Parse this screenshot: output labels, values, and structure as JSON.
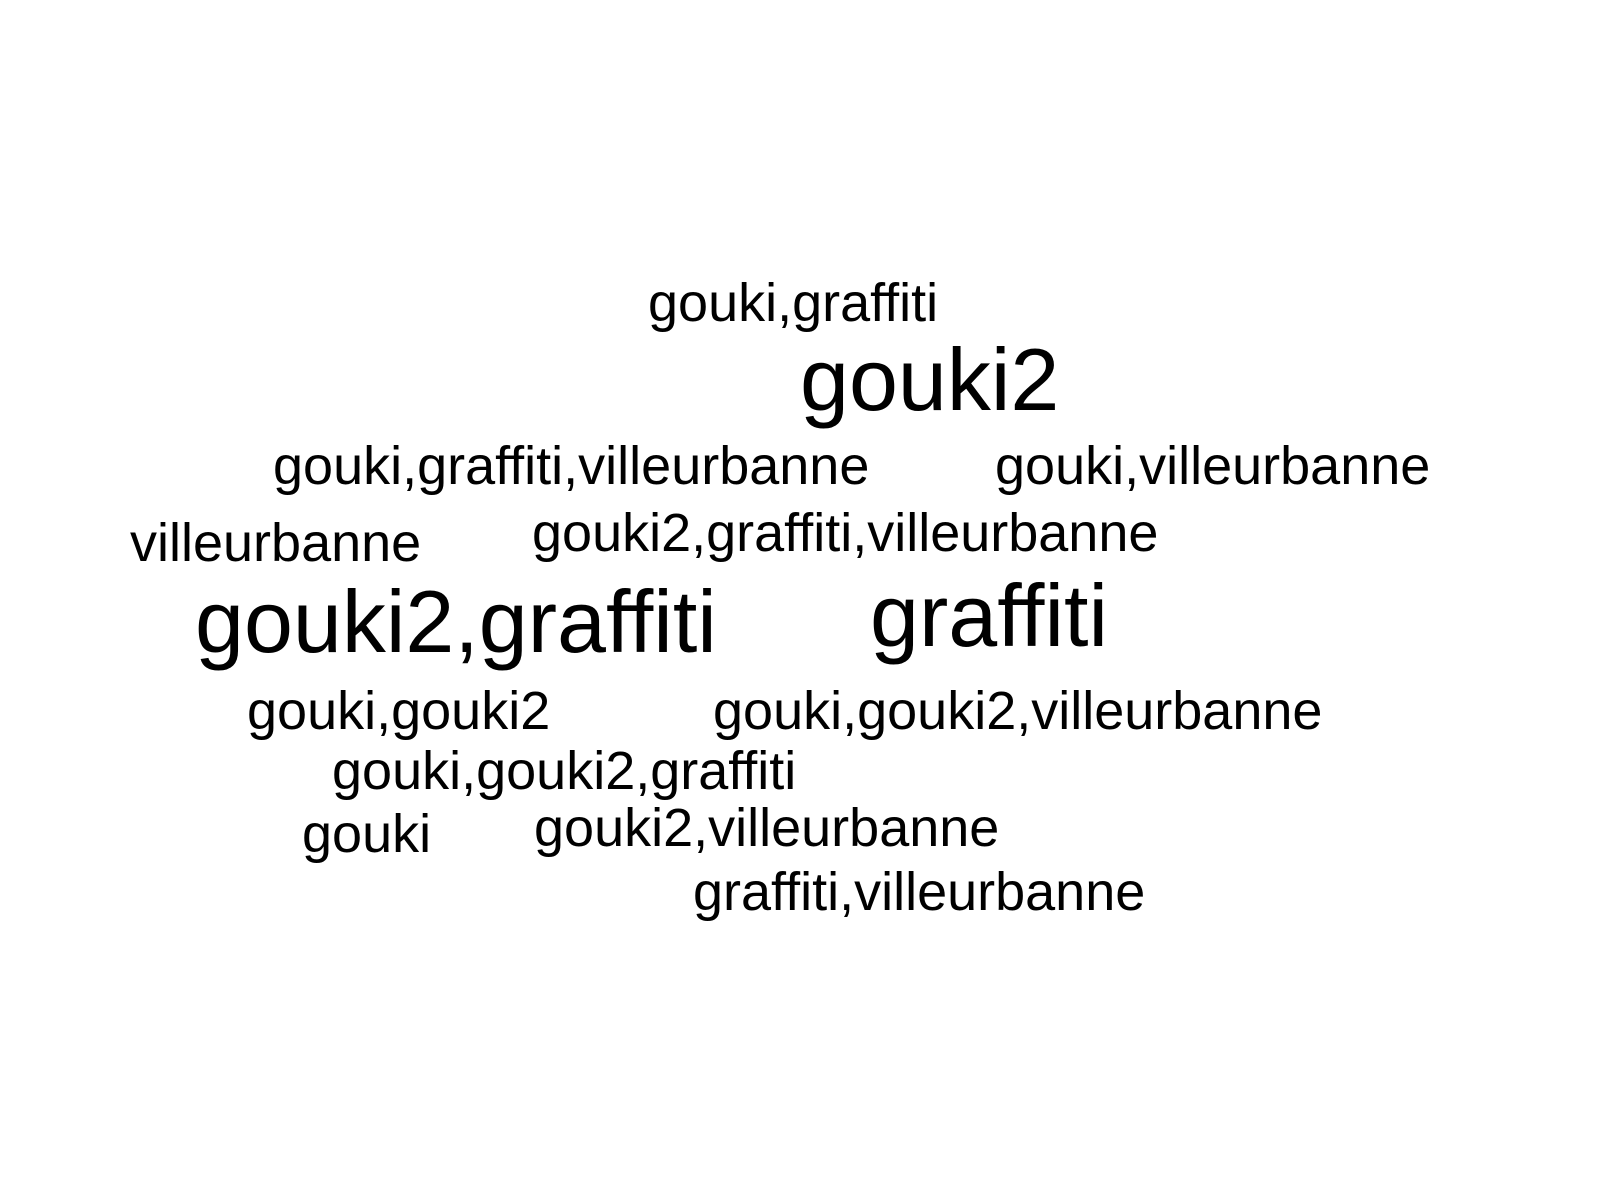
{
  "word_cloud": {
    "words": [
      {
        "text": "gouki,graffiti",
        "size": "small"
      },
      {
        "text": "gouki2",
        "size": "large"
      },
      {
        "text": "gouki,graffiti,villeurbanne",
        "size": "small"
      },
      {
        "text": "gouki,villeurbanne",
        "size": "small"
      },
      {
        "text": "villeurbanne",
        "size": "small"
      },
      {
        "text": "gouki2,graffiti,villeurbanne",
        "size": "small"
      },
      {
        "text": "gouki2,graffiti",
        "size": "large"
      },
      {
        "text": "graffiti",
        "size": "large"
      },
      {
        "text": "gouki,gouki2",
        "size": "small"
      },
      {
        "text": "gouki,gouki2,villeurbanne",
        "size": "small"
      },
      {
        "text": "gouki,gouki2,graffiti",
        "size": "small"
      },
      {
        "text": "gouki",
        "size": "small"
      },
      {
        "text": "gouki2,villeurbanne",
        "size": "small"
      },
      {
        "text": "graffiti,villeurbanne",
        "size": "small"
      }
    ],
    "text_color": "#000000",
    "background_color": "#ffffff"
  }
}
